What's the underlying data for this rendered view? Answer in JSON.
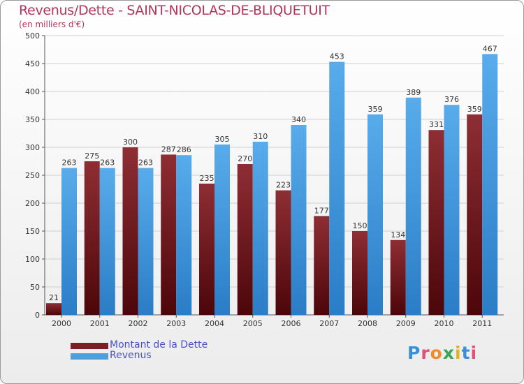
{
  "title": "Revenus/Dette - SAINT-NICOLAS-DE-BLIQUETUIT",
  "subtitle": "(en milliers d'€)",
  "logo": {
    "text": "Proxiti",
    "colors": [
      "#3a8fd6",
      "#e0507a",
      "#f28c28",
      "#3aa655",
      "#e3b21c",
      "#3a8fd6",
      "#e0507a"
    ]
  },
  "colors": {
    "dette": "#7a1f24",
    "revenus": "#4da0e0",
    "grid": "#d0d0d0",
    "title": "#b1355a",
    "legend_text": "#4a4fc4"
  },
  "chart_data": {
    "type": "bar",
    "title": "Revenus/Dette - SAINT-NICOLAS-DE-BLIQUETUIT",
    "ylabel": "(en milliers d'€)",
    "categories": [
      "2000",
      "2001",
      "2002",
      "2003",
      "2004",
      "2005",
      "2006",
      "2007",
      "2008",
      "2009",
      "2010",
      "2011"
    ],
    "series": [
      {
        "name": "Montant de la Dette",
        "values": [
          21,
          275,
          300,
          287,
          235,
          270,
          223,
          177,
          150,
          134,
          331,
          359
        ]
      },
      {
        "name": "Revenus",
        "values": [
          263,
          263,
          263,
          286,
          305,
          310,
          340,
          453,
          359,
          389,
          376,
          467
        ]
      }
    ],
    "ylim": [
      0,
      500
    ],
    "yticks": [
      0,
      50,
      100,
      150,
      200,
      250,
      300,
      350,
      400,
      450,
      500
    ],
    "grid": true,
    "legend": "bottom-left"
  }
}
